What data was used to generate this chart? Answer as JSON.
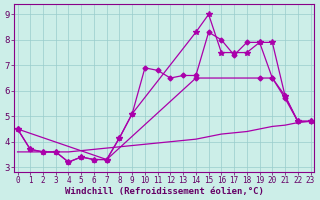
{
  "line1_x": [
    0,
    1,
    2,
    3,
    4,
    5,
    6,
    7,
    8,
    9,
    10,
    11,
    12,
    13,
    14,
    15,
    16,
    17,
    18,
    19,
    20,
    21,
    22,
    23
  ],
  "line1_y": [
    4.5,
    3.7,
    3.6,
    3.6,
    3.2,
    3.4,
    3.3,
    3.3,
    4.15,
    5.1,
    6.9,
    6.8,
    6.5,
    6.6,
    6.6,
    8.3,
    8.0,
    7.4,
    7.9,
    7.9,
    6.5,
    5.8,
    4.8,
    4.8
  ],
  "line2_x": [
    0,
    1,
    2,
    3,
    4,
    5,
    6,
    7,
    8,
    9,
    14,
    15,
    16,
    17,
    18,
    19,
    20,
    21,
    22,
    23
  ],
  "line2_y": [
    4.5,
    3.7,
    3.6,
    3.6,
    3.2,
    3.4,
    3.3,
    3.3,
    4.15,
    5.1,
    8.3,
    9.0,
    7.5,
    7.5,
    7.5,
    7.9,
    7.9,
    5.8,
    4.8,
    4.8
  ],
  "line3_x": [
    0,
    7,
    14,
    19,
    20,
    21,
    22,
    23
  ],
  "line3_y": [
    4.5,
    3.3,
    6.5,
    6.5,
    6.5,
    5.7,
    4.8,
    4.8
  ],
  "line4_x": [
    0,
    1,
    2,
    3,
    4,
    5,
    6,
    7,
    8,
    9,
    10,
    11,
    12,
    13,
    14,
    15,
    16,
    17,
    18,
    19,
    20,
    21,
    22,
    23
  ],
  "line4_y": [
    3.6,
    3.6,
    3.6,
    3.6,
    3.6,
    3.65,
    3.7,
    3.75,
    3.8,
    3.85,
    3.9,
    3.95,
    4.0,
    4.05,
    4.1,
    4.2,
    4.3,
    4.35,
    4.4,
    4.5,
    4.6,
    4.65,
    4.75,
    4.8
  ],
  "bg_color": "#cceee8",
  "line_color": "#aa00aa",
  "markersize": 3,
  "linewidth": 0.9,
  "xlabel": "Windchill (Refroidissement éolien,°C)",
  "xlim": [
    -0.3,
    23.3
  ],
  "ylim": [
    2.8,
    9.4
  ],
  "yticks": [
    3,
    4,
    5,
    6,
    7,
    8,
    9
  ],
  "xticks": [
    0,
    1,
    2,
    3,
    4,
    5,
    6,
    7,
    8,
    9,
    10,
    11,
    12,
    13,
    14,
    15,
    16,
    17,
    18,
    19,
    20,
    21,
    22,
    23
  ],
  "grid_color": "#99cccc",
  "axis_color": "#880088",
  "font_color": "#660066"
}
